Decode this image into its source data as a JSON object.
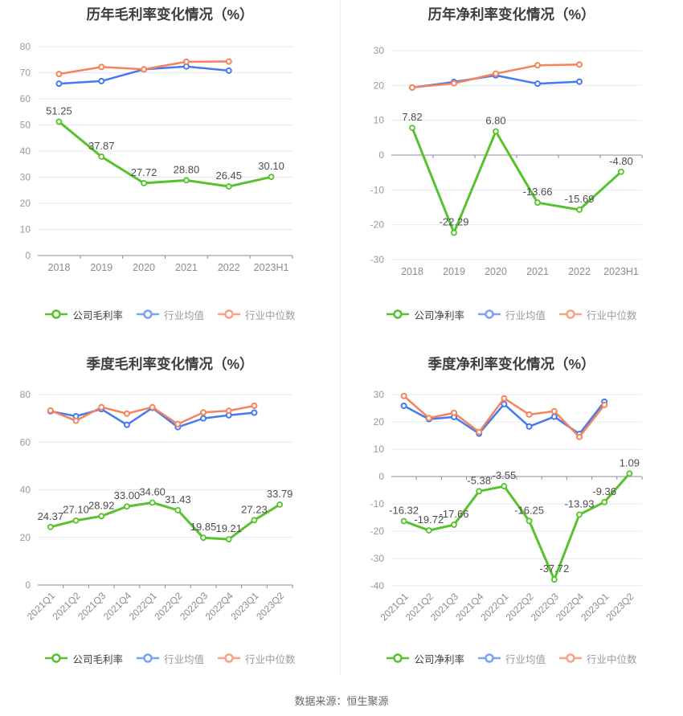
{
  "page": {
    "footer_source": "数据来源：恒生聚源"
  },
  "colors": {
    "company_green": "#56c22c",
    "industry_avg_blue": "#4478f4",
    "industry_median_orange": "#f6835a",
    "legend_blue": "#7aa0f8",
    "legend_orange": "#f9a285",
    "grid_line": "#e4e9f4",
    "axis_line": "#8b8e96",
    "tick_label": "#999999",
    "data_label": "#4d4d4d"
  },
  "chart_data": [
    {
      "id": "annual-gross-margin",
      "type": "line",
      "title": "历年毛利率变化情况（%）",
      "categories": [
        "2018",
        "2019",
        "2020",
        "2021",
        "2022",
        "2023H1"
      ],
      "ylim": [
        0,
        80
      ],
      "y_ticks": [
        0,
        10,
        20,
        30,
        40,
        50,
        60,
        70,
        80
      ],
      "axis_at": 0,
      "rotate_x_labels": false,
      "grid": true,
      "legend_position": "bottom",
      "series": [
        {
          "name": "公司毛利率",
          "role": "company",
          "show_labels": true,
          "values": [
            51.25,
            37.87,
            27.72,
            28.8,
            26.45,
            30.1
          ]
        },
        {
          "name": "行业均值",
          "role": "industry-avg",
          "show_labels": false,
          "values": [
            65.8,
            66.8,
            71.3,
            72.4,
            70.8
          ]
        },
        {
          "name": "行业中位数",
          "role": "industry-median",
          "show_labels": false,
          "values": [
            69.5,
            72.2,
            71.3,
            74.2,
            74.3
          ]
        }
      ]
    },
    {
      "id": "annual-net-margin",
      "type": "line",
      "title": "历年净利率变化情况（%）",
      "categories": [
        "2018",
        "2019",
        "2020",
        "2021",
        "2022",
        "2023H1"
      ],
      "ylim": [
        -30,
        30
      ],
      "y_ticks": [
        -30,
        -20,
        -10,
        0,
        10,
        20,
        30
      ],
      "axis_at": 0,
      "rotate_x_labels": false,
      "grid": true,
      "legend_position": "bottom",
      "series": [
        {
          "name": "公司净利率",
          "role": "company",
          "show_labels": true,
          "values": [
            7.82,
            -22.29,
            6.8,
            -13.66,
            -15.69,
            -4.8
          ]
        },
        {
          "name": "行业均值",
          "role": "industry-avg",
          "show_labels": false,
          "values": [
            19.4,
            21.0,
            22.9,
            20.5,
            21.1
          ]
        },
        {
          "name": "行业中位数",
          "role": "industry-median",
          "show_labels": false,
          "values": [
            19.4,
            20.6,
            23.4,
            25.8,
            26.0
          ]
        }
      ]
    },
    {
      "id": "quarterly-gross-margin",
      "type": "line",
      "title": "季度毛利率变化情况（%）",
      "categories": [
        "2021Q1",
        "2021Q2",
        "2021Q3",
        "2021Q4",
        "2022Q1",
        "2022Q2",
        "2022Q3",
        "2022Q4",
        "2023Q1",
        "2023Q2"
      ],
      "ylim": [
        0,
        80
      ],
      "y_ticks": [
        0,
        20,
        40,
        60,
        80
      ],
      "axis_at": 0,
      "rotate_x_labels": true,
      "grid": true,
      "legend_position": "bottom",
      "series": [
        {
          "name": "公司毛利率",
          "role": "company",
          "show_labels": true,
          "values": [
            24.37,
            27.1,
            28.92,
            33.0,
            34.6,
            31.43,
            19.85,
            19.21,
            27.23,
            33.79
          ]
        },
        {
          "name": "行业均值",
          "role": "industry-avg",
          "show_labels": false,
          "values": [
            73.0,
            70.9,
            73.9,
            67.3,
            74.4,
            66.3,
            70.0,
            71.3,
            72.4
          ]
        },
        {
          "name": "行业中位数",
          "role": "industry-median",
          "show_labels": false,
          "values": [
            73.3,
            69.0,
            74.7,
            72.0,
            74.7,
            67.6,
            72.5,
            73.2,
            75.3
          ]
        }
      ]
    },
    {
      "id": "quarterly-net-margin",
      "type": "line",
      "title": "季度净利率变化情况（%）",
      "categories": [
        "2021Q1",
        "2021Q2",
        "2021Q3",
        "2021Q4",
        "2022Q1",
        "2022Q2",
        "2022Q3",
        "2022Q4",
        "2023Q1",
        "2023Q2"
      ],
      "ylim": [
        -40,
        30
      ],
      "y_ticks": [
        -40,
        -30,
        -20,
        -10,
        0,
        10,
        20,
        30
      ],
      "axis_at": 0,
      "rotate_x_labels": true,
      "grid": true,
      "legend_position": "bottom",
      "series": [
        {
          "name": "公司净利率",
          "role": "company",
          "show_labels": true,
          "values": [
            -16.32,
            -19.72,
            -17.66,
            -5.38,
            -3.55,
            -16.25,
            -37.72,
            -13.93,
            -9.36,
            1.09
          ]
        },
        {
          "name": "行业均值",
          "role": "industry-avg",
          "show_labels": false,
          "values": [
            25.9,
            21.0,
            21.8,
            15.7,
            26.5,
            18.3,
            21.9,
            15.6,
            27.4
          ]
        },
        {
          "name": "行业中位数",
          "role": "industry-median",
          "show_labels": false,
          "values": [
            29.5,
            21.4,
            23.3,
            16.3,
            28.6,
            22.7,
            23.9,
            14.5,
            26.2
          ]
        }
      ]
    }
  ]
}
